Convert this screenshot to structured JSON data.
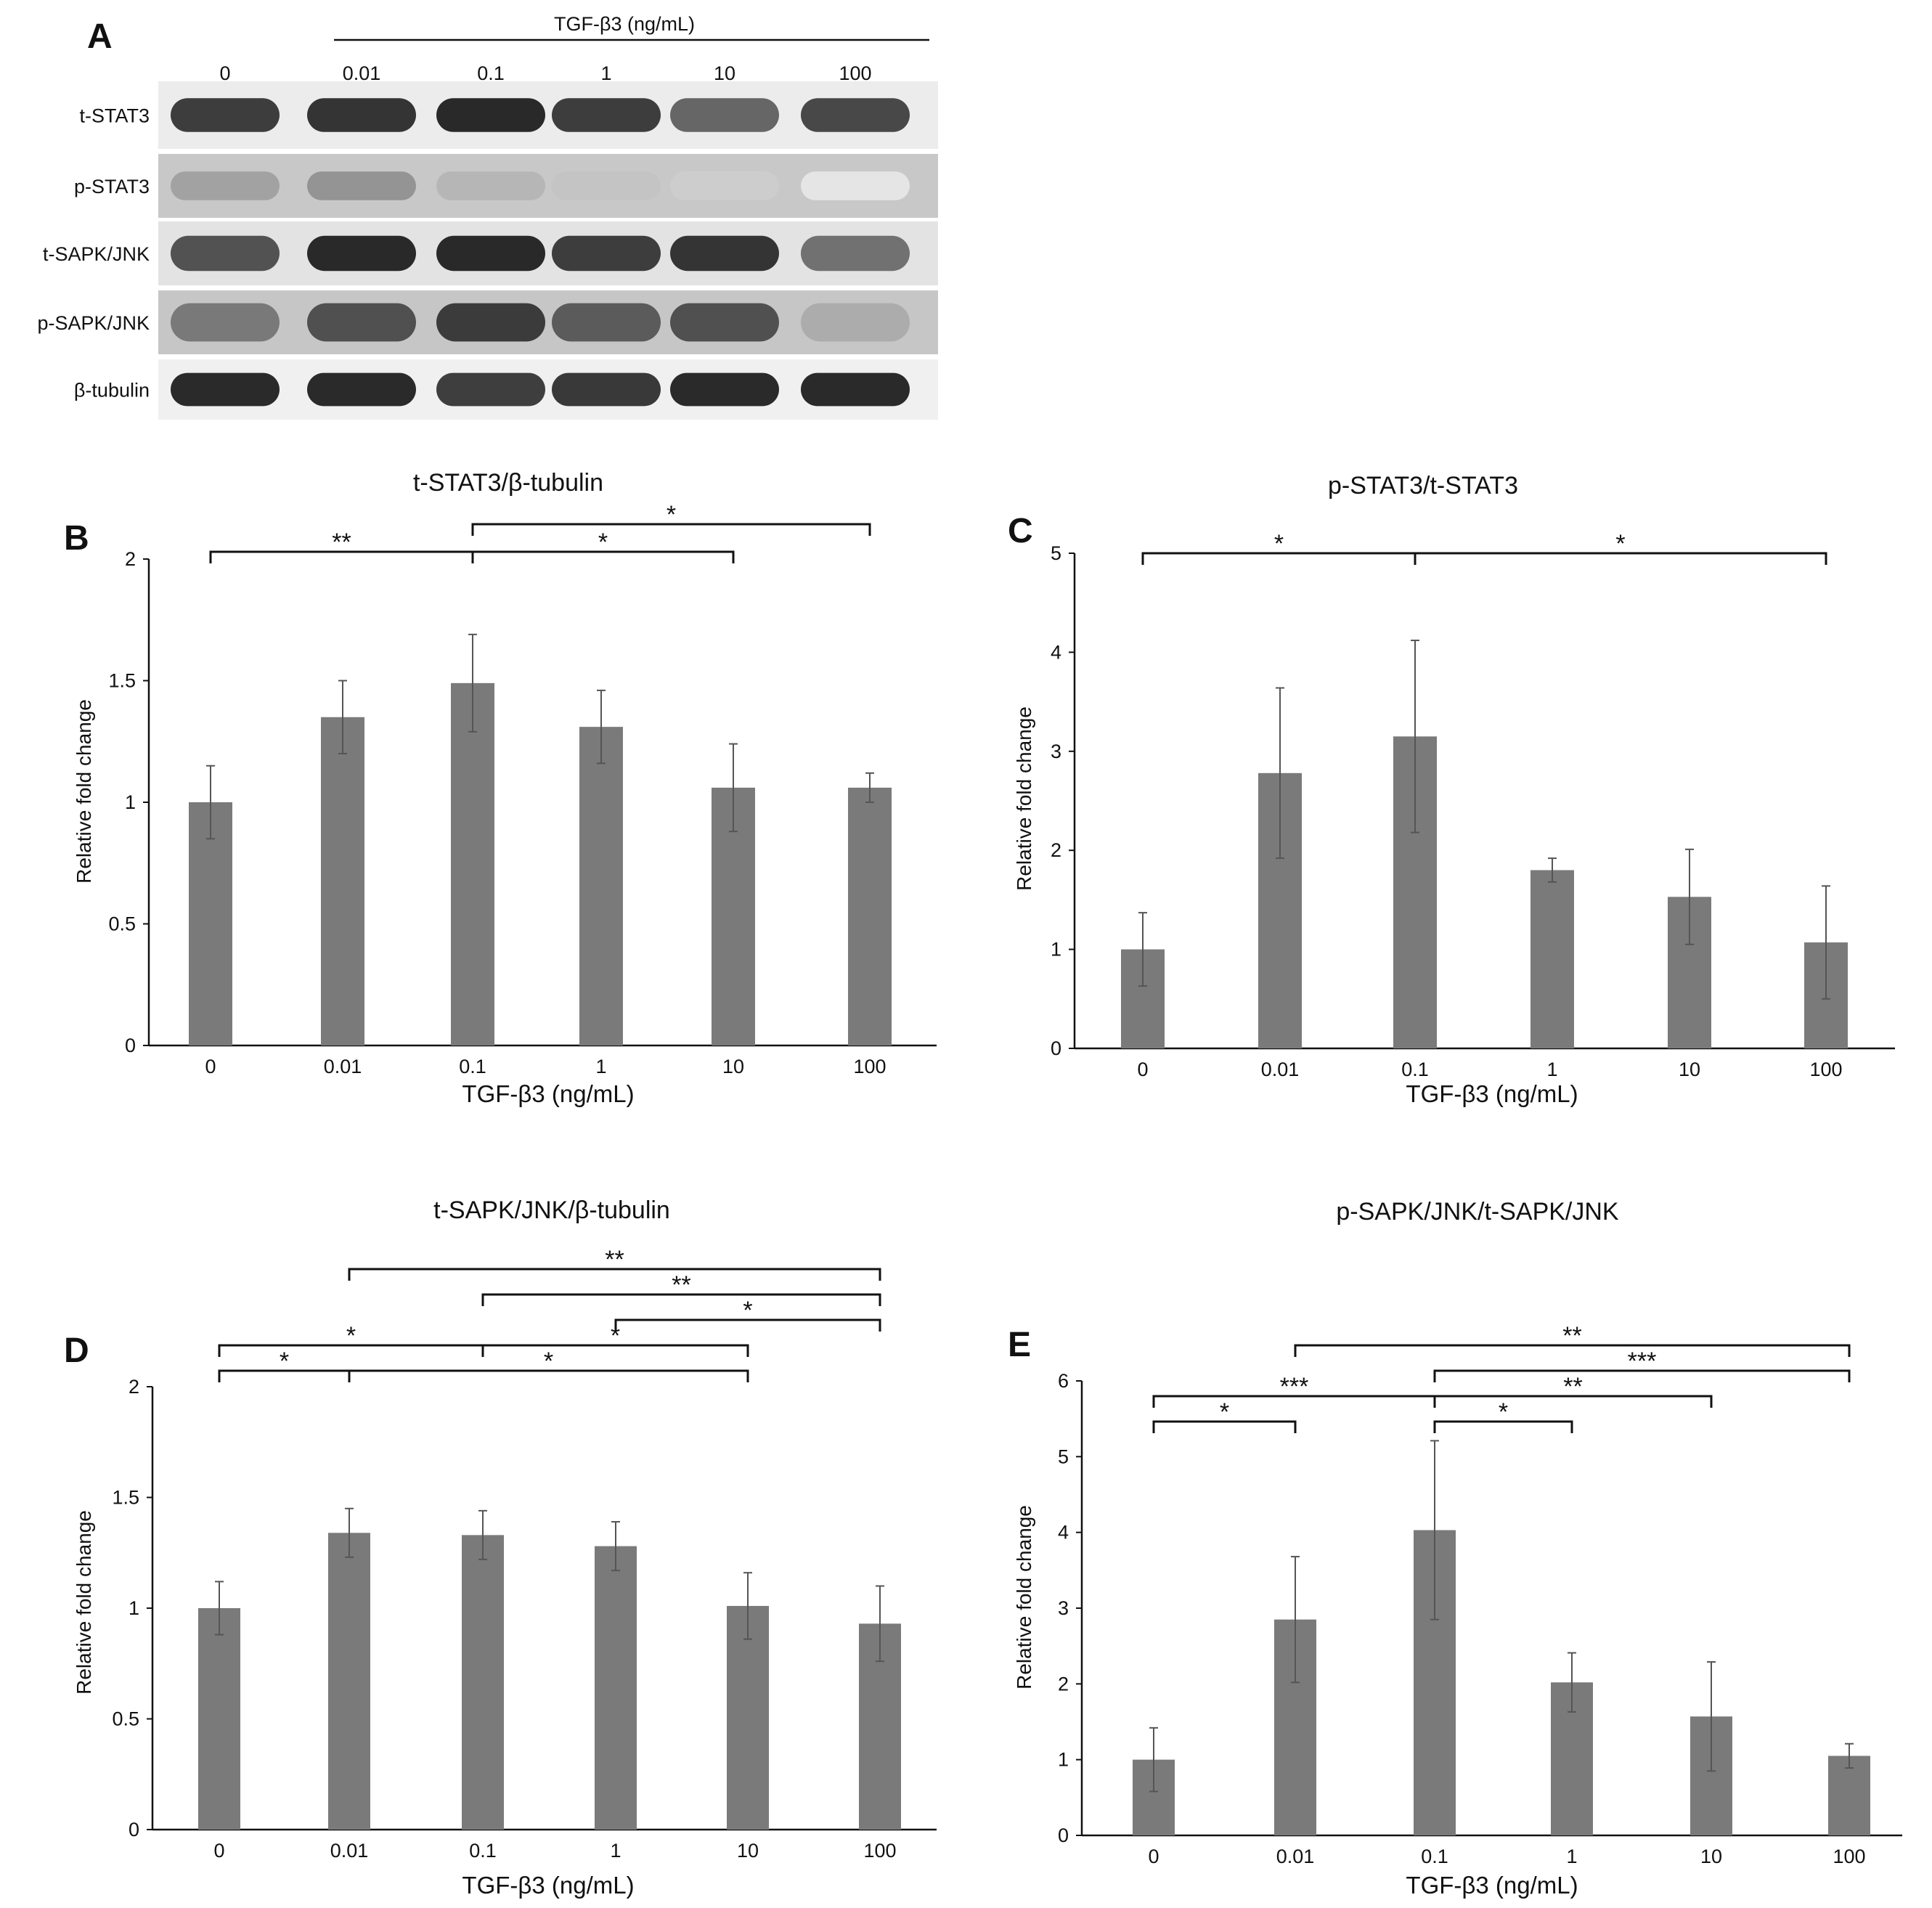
{
  "figure_panels": [
    "A",
    "B",
    "C",
    "D",
    "E"
  ],
  "blot": {
    "header": "TGF-β3 (ng/mL)",
    "lanes": [
      "0",
      "0.01",
      "0.1",
      "1",
      "10",
      "100"
    ],
    "rows": [
      {
        "label": "t-STAT3",
        "intensity": [
          0.85,
          0.9,
          0.95,
          0.85,
          0.65,
          0.8
        ],
        "bg": "#ececec",
        "thickness": 0.5
      },
      {
        "label": "p-STAT3",
        "intensity": [
          0.35,
          0.42,
          0.25,
          0.18,
          0.14,
          0.02
        ],
        "bg": "#c8c8c8",
        "thickness": 0.45
      },
      {
        "label": "t-SAPK/JNK",
        "intensity": [
          0.75,
          0.95,
          0.95,
          0.85,
          0.9,
          0.6
        ],
        "bg": "#e3e3e3",
        "thickness": 0.55
      },
      {
        "label": "p-SAPK/JNK",
        "intensity": [
          0.55,
          0.75,
          0.85,
          0.7,
          0.75,
          0.3
        ],
        "bg": "#c6c6c6",
        "thickness": 0.6
      },
      {
        "label": "β-tubulin",
        "intensity": [
          0.95,
          0.95,
          0.85,
          0.88,
          0.95,
          0.95
        ],
        "bg": "#f0f0f0",
        "thickness": 0.55
      }
    ]
  },
  "chart_data": [
    {
      "panel": "B",
      "type": "bar",
      "title": "t-STAT3/β-tubulin",
      "xlabel": "TGF-β3 (ng/mL)",
      "ylabel": "Relative fold change",
      "categories": [
        "0",
        "0.01",
        "0.1",
        "1",
        "10",
        "100"
      ],
      "values": [
        1.0,
        1.35,
        1.49,
        1.31,
        1.06,
        1.06
      ],
      "errors": [
        0.15,
        0.15,
        0.2,
        0.15,
        0.18,
        0.06
      ],
      "ylim": [
        0,
        2
      ],
      "yticks": [
        "0",
        "0.5",
        "1",
        "1.5",
        "2"
      ],
      "ytick_values": [
        0,
        0.5,
        1,
        1.5,
        2
      ],
      "bar_color": "#7a7a7a",
      "brackets": [
        {
          "from": 0,
          "to": 2,
          "level": 0,
          "label": "**"
        },
        {
          "from": 2,
          "to": 4,
          "level": 0,
          "label": "*"
        },
        {
          "from": 2,
          "to": 5,
          "level": 1,
          "label": "*"
        }
      ]
    },
    {
      "panel": "C",
      "type": "bar",
      "title": "p-STAT3/t-STAT3",
      "xlabel": "TGF-β3 (ng/mL)",
      "ylabel": "Relative fold change",
      "categories": [
        "0",
        "0.01",
        "0.1",
        "1",
        "10",
        "100"
      ],
      "values": [
        1.0,
        2.78,
        3.15,
        1.8,
        1.53,
        1.07
      ],
      "errors": [
        0.37,
        0.86,
        0.97,
        0.12,
        0.48,
        0.57
      ],
      "ylim": [
        0,
        5
      ],
      "yticks": [
        "0",
        "1",
        "2",
        "3",
        "4",
        "5"
      ],
      "ytick_values": [
        0,
        1,
        2,
        3,
        4,
        5
      ],
      "bar_color": "#7a7a7a",
      "brackets": [
        {
          "from": 0,
          "to": 2,
          "level": 0,
          "label": "*"
        },
        {
          "from": 2,
          "to": 5,
          "level": 0,
          "label": "*"
        }
      ]
    },
    {
      "panel": "D",
      "type": "bar",
      "title": "t-SAPK/JNK/β-tubulin",
      "xlabel": "TGF-β3 (ng/mL)",
      "ylabel": "Relative fold change",
      "categories": [
        "0",
        "0.01",
        "0.1",
        "1",
        "10",
        "100"
      ],
      "values": [
        1.0,
        1.34,
        1.33,
        1.28,
        1.01,
        0.93
      ],
      "errors": [
        0.12,
        0.11,
        0.11,
        0.11,
        0.15,
        0.17
      ],
      "ylim": [
        0,
        2
      ],
      "yticks": [
        "0",
        "0.5",
        "1",
        "1.5",
        "2"
      ],
      "ytick_values": [
        0,
        0.5,
        1,
        1.5,
        2
      ],
      "bar_color": "#7a7a7a",
      "brackets": [
        {
          "from": 0,
          "to": 1,
          "level": 0,
          "label": "*"
        },
        {
          "from": 1,
          "to": 4,
          "level": 0,
          "label": "*"
        },
        {
          "from": 0,
          "to": 2,
          "level": 1,
          "label": "*"
        },
        {
          "from": 2,
          "to": 4,
          "level": 1,
          "label": "*"
        },
        {
          "from": 3,
          "to": 5,
          "level": 2,
          "label": "*"
        },
        {
          "from": 2,
          "to": 5,
          "level": 3,
          "label": "**"
        },
        {
          "from": 1,
          "to": 5,
          "level": 4,
          "label": "**"
        }
      ]
    },
    {
      "panel": "E",
      "type": "bar",
      "title": "p-SAPK/JNK/t-SAPK/JNK",
      "xlabel": "TGF-β3 (ng/mL)",
      "ylabel": "Relative fold change",
      "categories": [
        "0",
        "0.01",
        "0.1",
        "1",
        "10",
        "100"
      ],
      "values": [
        1.0,
        2.85,
        4.03,
        2.02,
        1.57,
        1.05
      ],
      "errors": [
        0.42,
        0.83,
        1.18,
        0.39,
        0.72,
        0.16
      ],
      "ylim": [
        0,
        6
      ],
      "yticks": [
        "0",
        "1",
        "2",
        "3",
        "4",
        "5",
        "6"
      ],
      "ytick_values": [
        0,
        1,
        2,
        3,
        4,
        5,
        6
      ],
      "bar_color": "#7a7a7a",
      "brackets": [
        {
          "from": 0,
          "to": 1,
          "level": 0,
          "label": "*"
        },
        {
          "from": 2,
          "to": 3,
          "level": 0,
          "label": "*"
        },
        {
          "from": 0,
          "to": 2,
          "level": 1,
          "label": "***"
        },
        {
          "from": 2,
          "to": 4,
          "level": 1,
          "label": "**"
        },
        {
          "from": 2,
          "to": 5,
          "level": 2,
          "label": "***"
        },
        {
          "from": 1,
          "to": 5,
          "level": 3,
          "label": "**"
        }
      ]
    }
  ]
}
